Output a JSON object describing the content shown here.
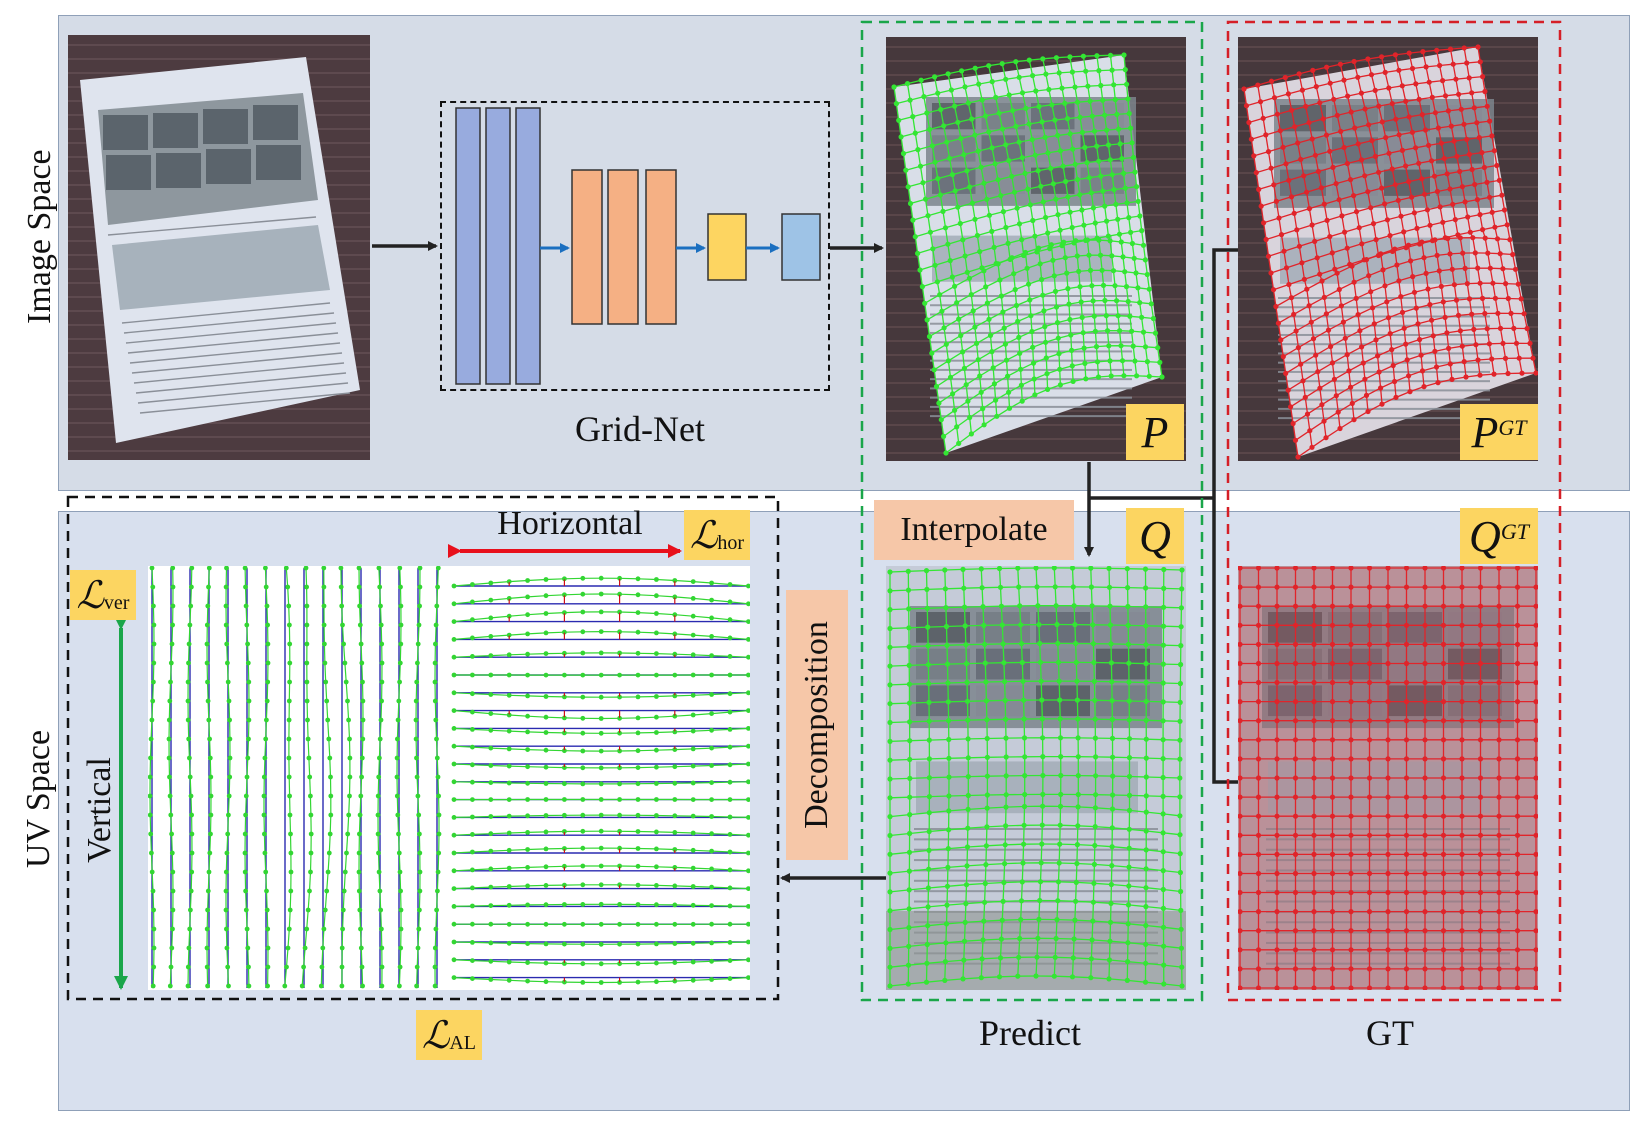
{
  "sections": {
    "image_space": "Image Space",
    "uv_space": "UV Space"
  },
  "network": {
    "label": "Grid-Net"
  },
  "symbols": {
    "p": "P",
    "p_gt": "P",
    "gt_sup": "GT",
    "q": "Q",
    "q_gt": "Q"
  },
  "ops": {
    "interpolate": "Interpolate",
    "decomposition": "Decomposition"
  },
  "directions": {
    "horizontal": "Horizontal",
    "vertical": "Vertical"
  },
  "losses": {
    "script": "ℒ",
    "hor": "hor",
    "ver": "ver",
    "al": "AL"
  },
  "captions": {
    "predict": "Predict",
    "gt": "GT"
  },
  "colors": {
    "predict": "#2ee62e",
    "gt": "#e0242a",
    "arrow_blue": "#1b6fc0",
    "block_blue": "#98abde",
    "block_orange": "#f5b084",
    "block_yellow": "#fdd561",
    "block_light": "#9ec3e6"
  }
}
